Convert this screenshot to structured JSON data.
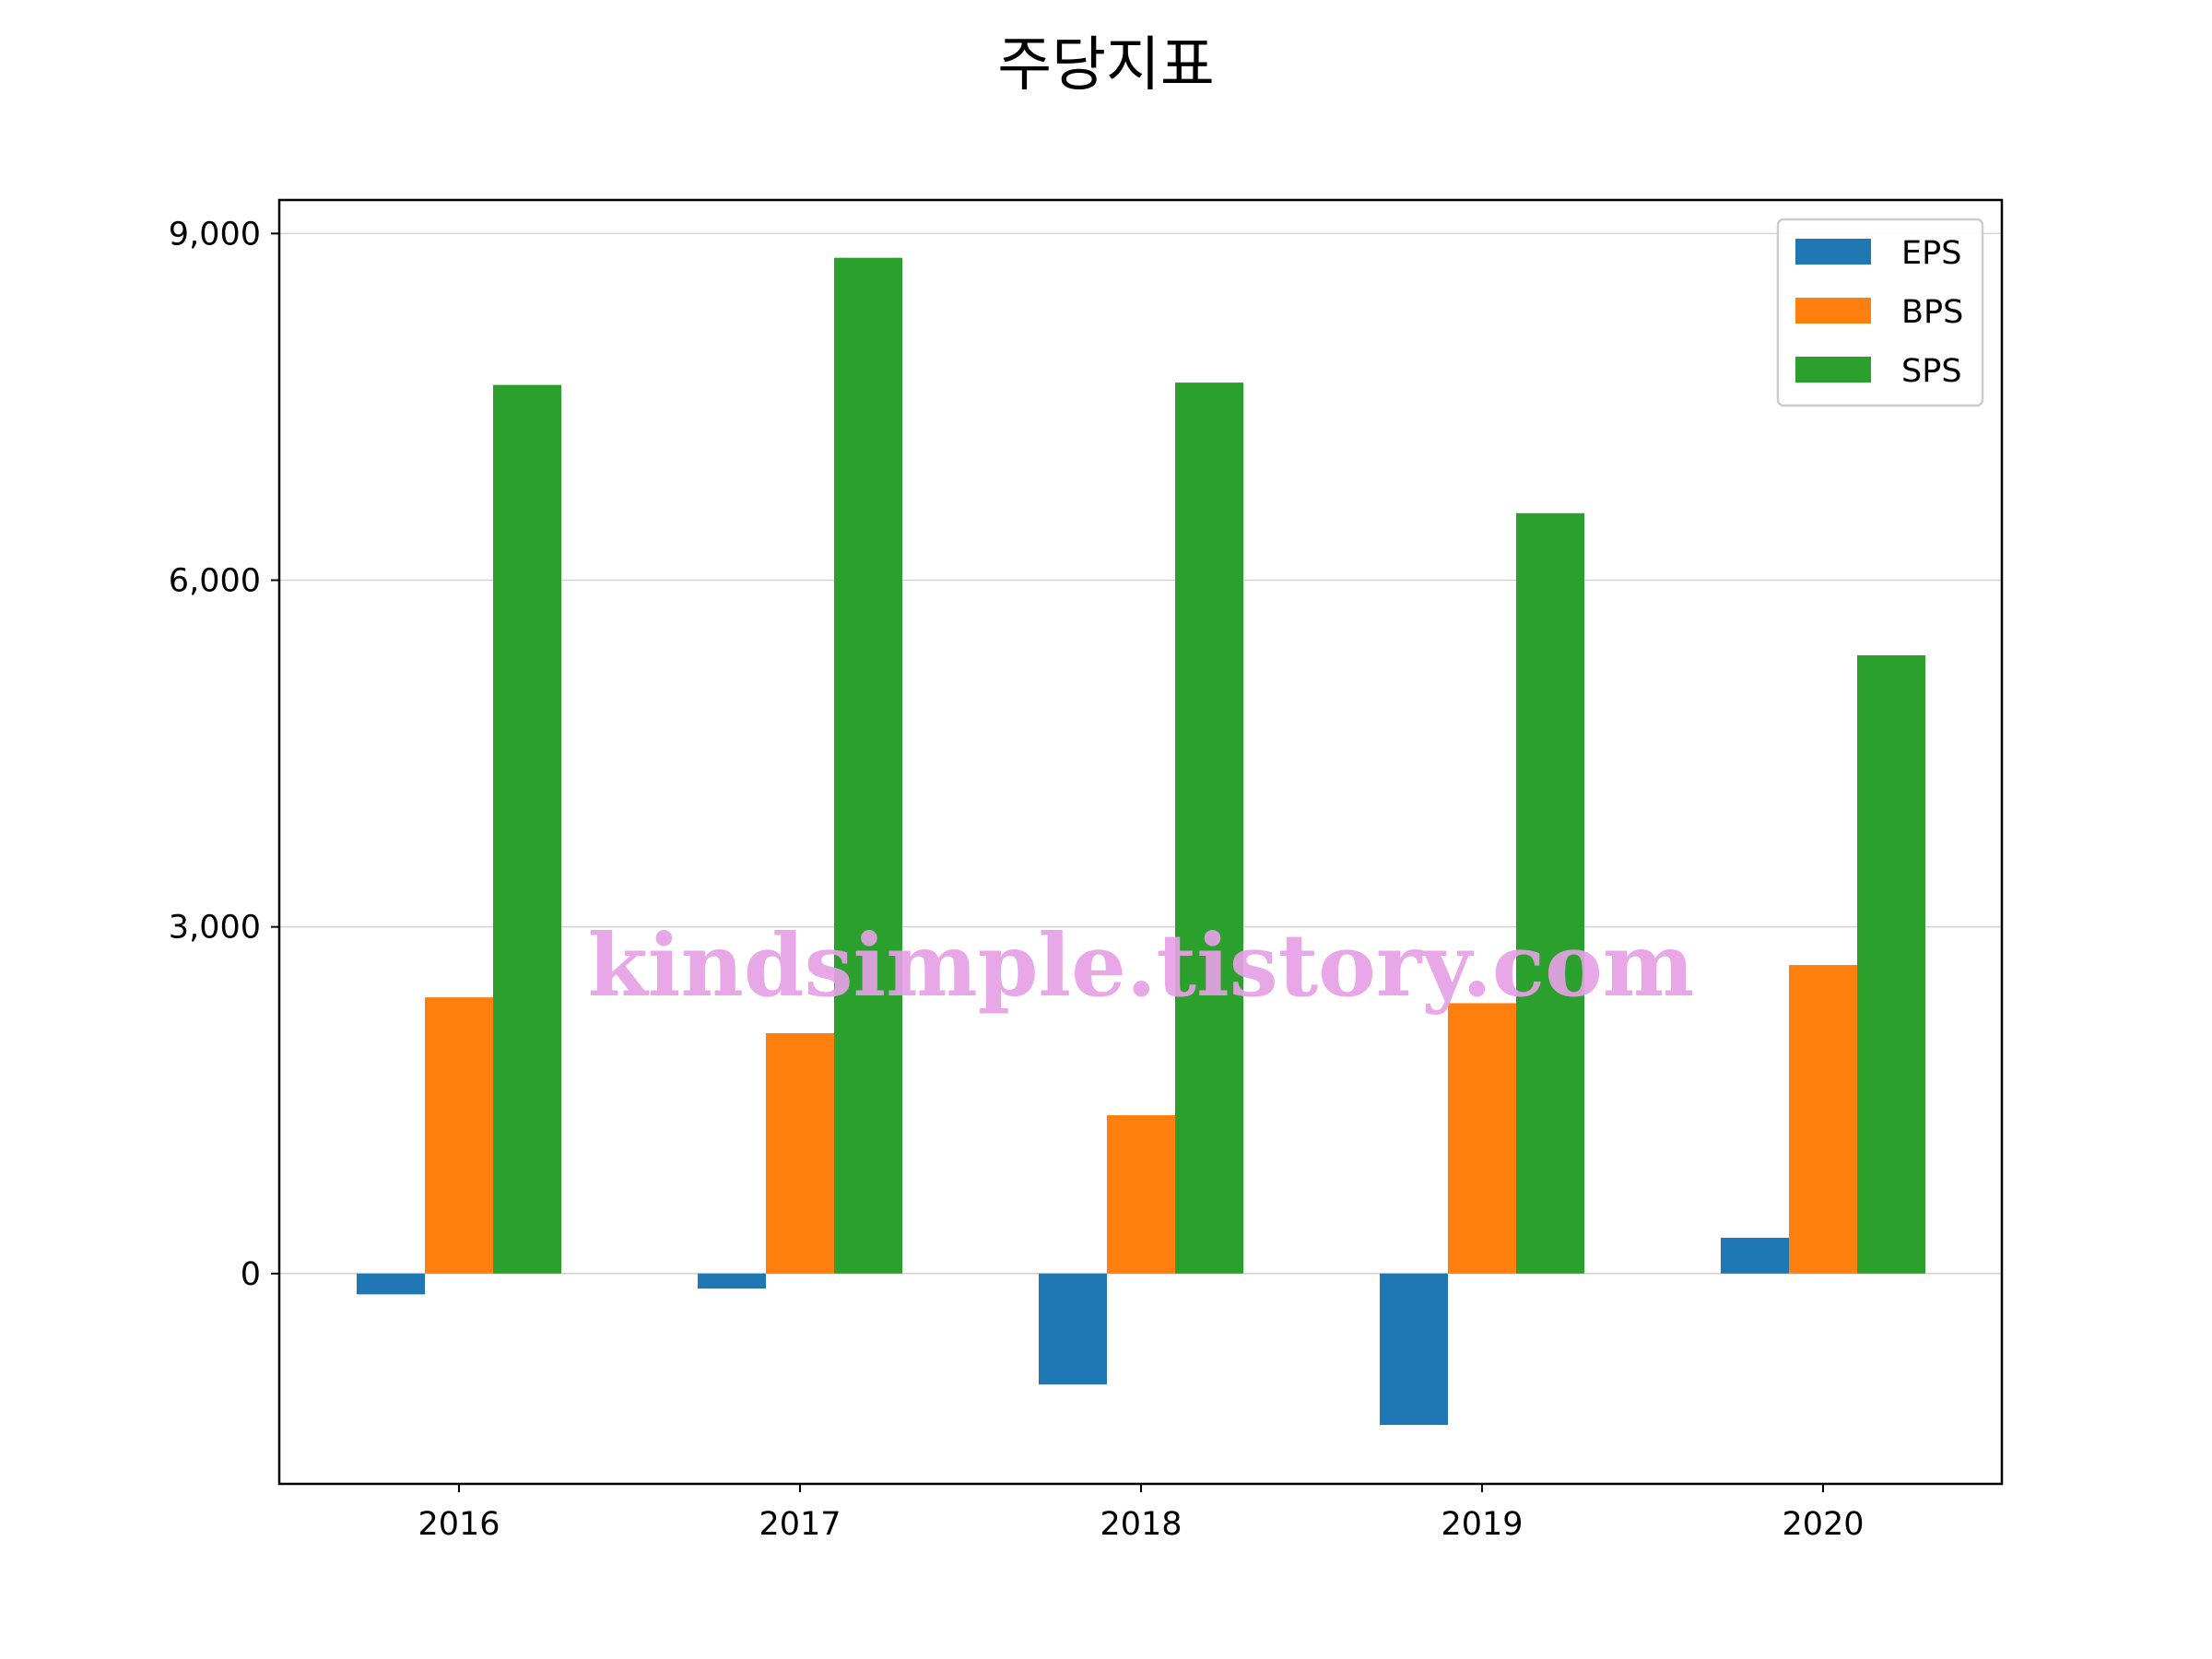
{
  "chart_data": {
    "type": "bar",
    "title": "주당지표",
    "xlabel": "",
    "ylabel": "",
    "categories": [
      "2016",
      "2017",
      "2018",
      "2019",
      "2020"
    ],
    "series": [
      {
        "name": "EPS",
        "color": "#1f77b4",
        "values": [
          -180,
          -130,
          -960,
          -1310,
          310
        ]
      },
      {
        "name": "BPS",
        "color": "#ff7f0e",
        "values": [
          2390,
          2080,
          1370,
          2340,
          2670
        ]
      },
      {
        "name": "SPS",
        "color": "#2ca02c",
        "values": [
          7690,
          8790,
          7710,
          6580,
          5350
        ]
      }
    ],
    "ylim": [
      -1820,
      9290
    ],
    "yticks": [
      0,
      3000,
      6000,
      9000
    ],
    "ytick_labels": [
      "0",
      "3,000",
      "6,000",
      "9,000"
    ],
    "grid": "horizontal",
    "legend_position": "top-right"
  },
  "watermark": "kindsimple.tistory.com",
  "colors": {
    "watermark": "#e6a1e6",
    "grid": "#d3d3d3",
    "axes": "#000000"
  }
}
